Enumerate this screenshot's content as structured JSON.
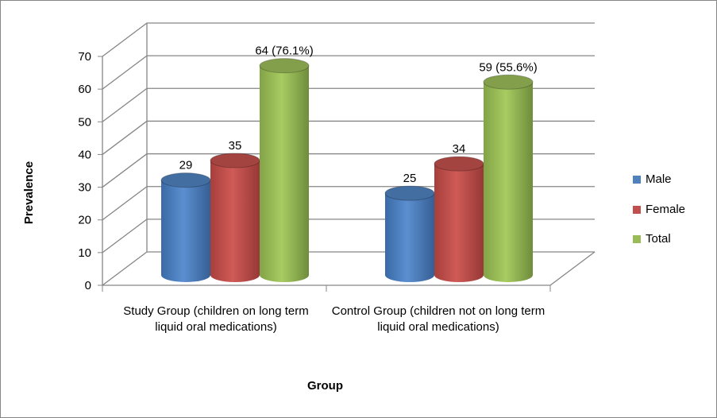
{
  "chart_data": {
    "type": "bar",
    "style": "3d-cylinder",
    "title": "",
    "xlabel": "Group",
    "ylabel": "Prevalence",
    "ylim": [
      0,
      70
    ],
    "yticks": [
      "0",
      "10",
      "20",
      "30",
      "40",
      "50",
      "60",
      "70"
    ],
    "grid": true,
    "legend_position": "right",
    "categories": [
      "Study Group (children on long term liquid oral medications)",
      "Control Group (children not on long term liquid oral medications)"
    ],
    "series": [
      {
        "name": "Male",
        "color": "#4F81BD",
        "values": [
          29,
          25
        ],
        "labels": [
          "29",
          "25"
        ]
      },
      {
        "name": "Female",
        "color": "#C0504D",
        "values": [
          35,
          34
        ],
        "labels": [
          "35",
          "34"
        ]
      },
      {
        "name": "Total",
        "color": "#9BBB59",
        "values": [
          64,
          59
        ],
        "labels": [
          "64 (76.1%)",
          "59 (55.6%)"
        ]
      }
    ]
  }
}
